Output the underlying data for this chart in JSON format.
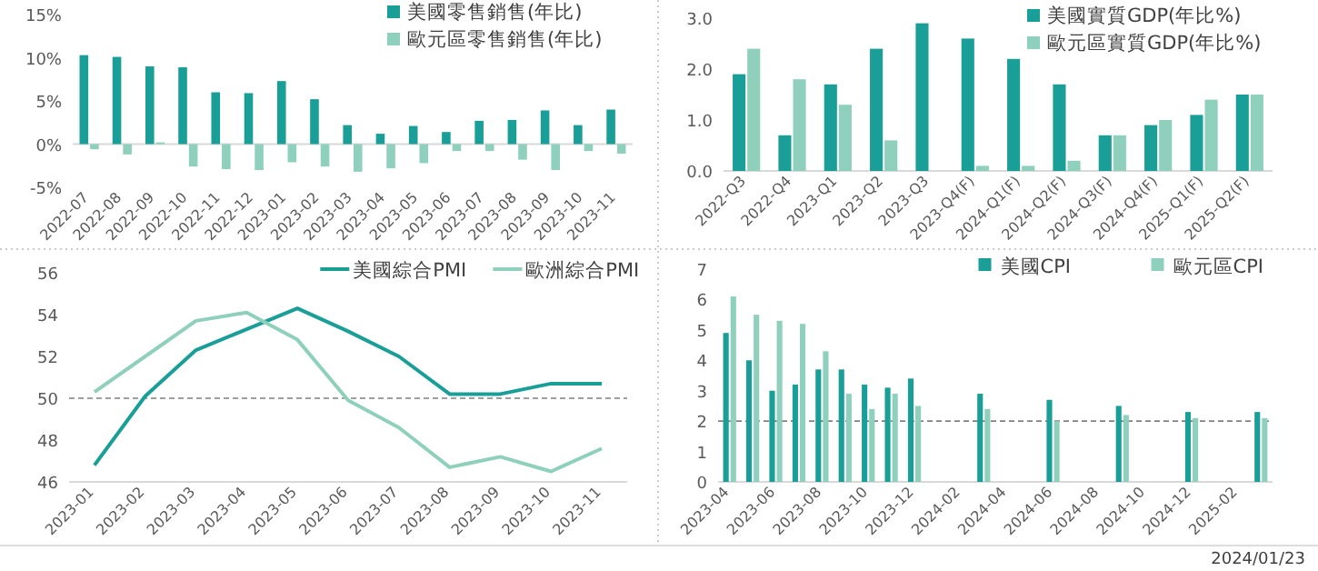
{
  "chart_data": [
    {
      "type": "bar",
      "categories": [
        "2022-07",
        "2022-08",
        "2022-09",
        "2022-10",
        "2022-11",
        "2022-12",
        "2023-01",
        "2023-02",
        "2023-03",
        "2023-04",
        "2023-05",
        "2023-06",
        "2023-07",
        "2023-08",
        "2023-09",
        "2023-10",
        "2023-11"
      ],
      "series": [
        {
          "name": "美國零售銷售(年比)",
          "color": "#1a9e98",
          "values": [
            10.3,
            10.1,
            9.0,
            8.9,
            6.0,
            5.9,
            7.3,
            5.2,
            2.2,
            1.2,
            2.1,
            1.4,
            2.7,
            2.8,
            3.9,
            2.2,
            4.0
          ]
        },
        {
          "name": "歐元區零售銷售(年比)",
          "color": "#8fd0bd",
          "values": [
            -0.6,
            -1.2,
            0.2,
            -2.6,
            -2.9,
            -3.0,
            -2.1,
            -2.6,
            -3.2,
            -2.8,
            -2.2,
            -0.8,
            -0.8,
            -1.8,
            -3.0,
            -0.8,
            -1.1
          ]
        }
      ],
      "ylim": [
        -5,
        15
      ],
      "yticks": [
        {
          "value": -5,
          "label": "-5%"
        },
        {
          "value": 0,
          "label": "0%"
        },
        {
          "value": 5,
          "label": "5%"
        },
        {
          "value": 10,
          "label": "10%"
        },
        {
          "value": 15,
          "label": "15%"
        }
      ],
      "legend": "top right"
    },
    {
      "type": "bar",
      "categories": [
        "2022-Q3",
        "2022-Q4",
        "2023-Q1",
        "2023-Q2",
        "2023-Q3",
        "2023-Q4(F)",
        "2024-Q1(F)",
        "2024-Q2(F)",
        "2024-Q3(F)",
        "2024-Q4(F)",
        "2025-Q1(F)",
        "2025-Q2(F)"
      ],
      "series": [
        {
          "name": "美國實質GDP(年比%)",
          "color": "#1a9e98",
          "values": [
            1.9,
            0.7,
            1.7,
            2.4,
            2.9,
            2.6,
            2.2,
            1.7,
            0.7,
            0.9,
            1.1,
            1.5
          ]
        },
        {
          "name": "歐元區實質GDP(年比%)",
          "color": "#8fd0bd",
          "values": [
            2.4,
            1.8,
            1.3,
            0.6,
            0.0,
            0.1,
            0.1,
            0.2,
            0.7,
            1.0,
            1.4,
            1.5
          ]
        }
      ],
      "ylim": [
        0,
        3
      ],
      "yticks": [
        {
          "value": 0,
          "label": "0.0"
        },
        {
          "value": 1,
          "label": "1.0"
        },
        {
          "value": 2,
          "label": "2.0"
        },
        {
          "value": 3,
          "label": "3.0"
        }
      ],
      "legend": "top right"
    },
    {
      "type": "line",
      "categories": [
        "2023-01",
        "2023-02",
        "2023-03",
        "2023-04",
        "2023-05",
        "2023-06",
        "2023-07",
        "2023-08",
        "2023-09",
        "2023-10",
        "2023-11"
      ],
      "series": [
        {
          "name": "美國綜合PMI",
          "color": "#1a9e98",
          "values": [
            46.8,
            50.1,
            52.3,
            53.3,
            54.3,
            53.2,
            52.0,
            50.2,
            50.2,
            50.7,
            50.7
          ]
        },
        {
          "name": "歐洲綜合PMI",
          "color": "#8fd0bd",
          "values": [
            50.3,
            52.0,
            53.7,
            54.1,
            52.8,
            49.9,
            48.6,
            46.7,
            47.2,
            46.5,
            47.6
          ]
        }
      ],
      "ylim": [
        46,
        56
      ],
      "yticks": [
        46,
        48,
        50,
        52,
        54,
        56
      ],
      "ref_lines": [
        {
          "axis": "y",
          "value": 50,
          "line_style": "dashed"
        }
      ],
      "legend": "top"
    },
    {
      "type": "bar",
      "categories": [
        "2023-04",
        null,
        "2023-06",
        null,
        "2023-08",
        null,
        "2023-10",
        null,
        "2023-12",
        null,
        "2024-02",
        null,
        "2024-04",
        null,
        "2024-06",
        null,
        "2024-08",
        null,
        "2024-10",
        null,
        "2024-12",
        null,
        "2025-02",
        null
      ],
      "series": [
        {
          "name": "美國CPI",
          "color": "#1a9e98",
          "values": [
            4.9,
            4.0,
            3.0,
            3.2,
            3.7,
            3.7,
            3.2,
            3.1,
            3.4,
            null,
            null,
            2.9,
            null,
            null,
            2.7,
            null,
            null,
            2.5,
            null,
            null,
            2.3,
            null,
            null,
            2.3
          ]
        },
        {
          "name": "歐元區CPI",
          "color": "#8fd0bd",
          "values": [
            6.1,
            5.5,
            5.3,
            5.2,
            4.3,
            2.9,
            2.4,
            2.9,
            2.5,
            null,
            null,
            2.4,
            null,
            null,
            2.0,
            null,
            null,
            2.2,
            null,
            null,
            2.1,
            null,
            null,
            2.1
          ]
        }
      ],
      "ylim": [
        0,
        7
      ],
      "yticks": [
        0,
        1,
        2,
        3,
        4,
        5,
        6,
        7
      ],
      "ref_lines": [
        {
          "axis": "y",
          "value": 2,
          "line_style": "dashed"
        }
      ],
      "legend": "top",
      "annotations": [
        "2024/01/23"
      ]
    }
  ]
}
